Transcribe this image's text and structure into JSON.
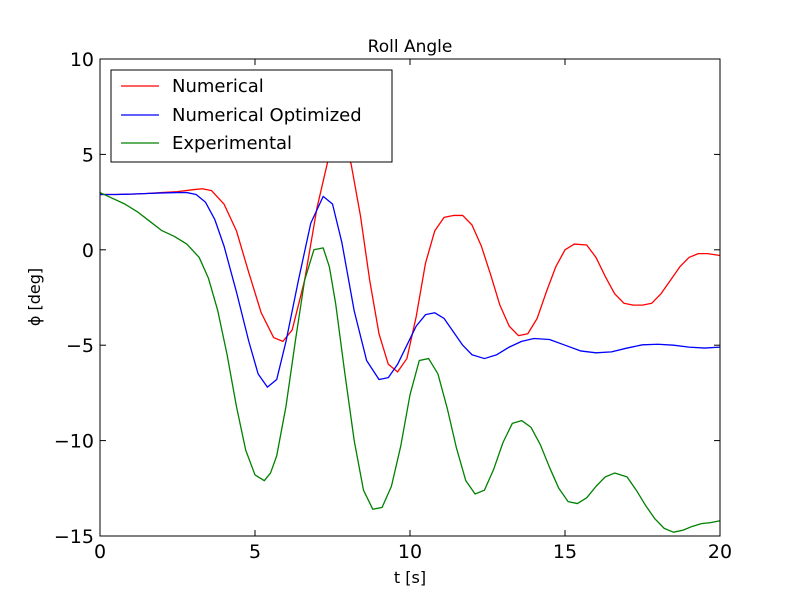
{
  "chart_data": {
    "type": "line",
    "title": "Roll Angle",
    "xlabel": "t [s]",
    "ylabel": "ϕ [deg]",
    "xlim": [
      0,
      20
    ],
    "ylim": [
      -15,
      10
    ],
    "xticks": [
      0,
      5,
      10,
      15,
      20
    ],
    "yticks": [
      10,
      5,
      0,
      -5,
      -10,
      -15
    ],
    "xtick_labels": [
      "0",
      "5",
      "10",
      "15",
      "20"
    ],
    "ytick_labels": [
      "10",
      "5",
      "0",
      "−5",
      "−10",
      "−15"
    ],
    "grid": false,
    "legend_position": "top-left",
    "series": [
      {
        "name": "Numerical",
        "color": "#ff0000",
        "x": [
          0,
          0.5,
          1,
          1.5,
          2,
          2.5,
          3,
          3.3,
          3.6,
          4,
          4.4,
          4.8,
          5.2,
          5.6,
          5.9,
          6.2,
          6.6,
          7,
          7.4,
          7.8,
          8.1,
          8.4,
          8.7,
          9,
          9.3,
          9.6,
          9.9,
          10.2,
          10.5,
          10.8,
          11.1,
          11.4,
          11.7,
          12,
          12.3,
          12.6,
          12.9,
          13.2,
          13.5,
          13.8,
          14.1,
          14.4,
          14.7,
          15,
          15.3,
          15.7,
          16,
          16.3,
          16.6,
          16.9,
          17.2,
          17.5,
          17.8,
          18.1,
          18.4,
          18.7,
          19,
          19.3,
          19.6,
          20
        ],
        "y": [
          2.9,
          2.9,
          2.92,
          2.95,
          3.0,
          3.05,
          3.15,
          3.2,
          3.1,
          2.4,
          1.0,
          -1.2,
          -3.3,
          -4.6,
          -4.8,
          -4.2,
          -1.6,
          2.2,
          5.0,
          5.6,
          4.5,
          1.8,
          -1.6,
          -4.4,
          -6.0,
          -6.4,
          -5.7,
          -3.5,
          -0.7,
          1.0,
          1.7,
          1.8,
          1.8,
          1.3,
          0.2,
          -1.3,
          -2.9,
          -4.0,
          -4.5,
          -4.4,
          -3.6,
          -2.2,
          -0.9,
          0.0,
          0.3,
          0.25,
          -0.4,
          -1.4,
          -2.3,
          -2.8,
          -2.9,
          -2.9,
          -2.8,
          -2.3,
          -1.6,
          -0.9,
          -0.4,
          -0.2,
          -0.2,
          -0.3
        ]
      },
      {
        "name": "Numerical Optimized",
        "color": "#0000ff",
        "x": [
          0,
          0.5,
          1,
          1.5,
          2,
          2.5,
          2.8,
          3.1,
          3.4,
          3.7,
          4,
          4.4,
          4.8,
          5.1,
          5.4,
          5.7,
          6,
          6.4,
          6.8,
          7.2,
          7.5,
          7.8,
          8.2,
          8.6,
          9,
          9.3,
          9.6,
          9.9,
          10.2,
          10.5,
          10.8,
          11.1,
          11.4,
          11.7,
          12,
          12.4,
          12.8,
          13.2,
          13.6,
          14,
          14.5,
          15,
          15.5,
          16,
          16.5,
          17,
          17.5,
          18,
          18.5,
          19,
          19.5,
          20
        ],
        "y": [
          2.9,
          2.9,
          2.92,
          2.95,
          2.98,
          3.0,
          3.0,
          2.9,
          2.5,
          1.6,
          0.2,
          -2.2,
          -4.8,
          -6.5,
          -7.2,
          -6.8,
          -4.8,
          -1.6,
          1.4,
          2.8,
          2.4,
          0.4,
          -3.2,
          -5.8,
          -6.8,
          -6.7,
          -6.0,
          -5.0,
          -4.0,
          -3.4,
          -3.3,
          -3.6,
          -4.3,
          -5.0,
          -5.5,
          -5.7,
          -5.5,
          -5.1,
          -4.8,
          -4.65,
          -4.7,
          -5.0,
          -5.3,
          -5.4,
          -5.35,
          -5.15,
          -4.98,
          -4.95,
          -5.0,
          -5.1,
          -5.15,
          -5.1
        ]
      },
      {
        "name": "Experimental",
        "color": "#008000",
        "x": [
          0,
          0.4,
          0.8,
          1.2,
          1.6,
          2,
          2.4,
          2.8,
          3.2,
          3.5,
          3.8,
          4.1,
          4.4,
          4.7,
          5,
          5.3,
          5.5,
          5.7,
          6,
          6.3,
          6.6,
          6.9,
          7.2,
          7.4,
          7.6,
          7.9,
          8.2,
          8.5,
          8.8,
          9.1,
          9.4,
          9.7,
          10,
          10.3,
          10.6,
          10.9,
          11.2,
          11.5,
          11.8,
          12.1,
          12.4,
          12.7,
          13,
          13.3,
          13.6,
          13.9,
          14.2,
          14.5,
          14.8,
          15.1,
          15.4,
          15.7,
          16,
          16.3,
          16.6,
          17,
          17.3,
          17.6,
          17.9,
          18.2,
          18.5,
          18.8,
          19.1,
          19.4,
          19.7,
          20
        ],
        "y": [
          3.0,
          2.7,
          2.4,
          2.0,
          1.5,
          1.0,
          0.7,
          0.3,
          -0.4,
          -1.5,
          -3.2,
          -5.5,
          -8.2,
          -10.5,
          -11.8,
          -12.1,
          -11.7,
          -10.8,
          -8.2,
          -4.8,
          -1.6,
          0.0,
          0.1,
          -0.9,
          -2.8,
          -6.5,
          -10.0,
          -12.6,
          -13.6,
          -13.5,
          -12.4,
          -10.3,
          -7.6,
          -5.8,
          -5.7,
          -6.5,
          -8.3,
          -10.4,
          -12.1,
          -12.8,
          -12.6,
          -11.5,
          -10.1,
          -9.1,
          -8.95,
          -9.3,
          -10.2,
          -11.4,
          -12.5,
          -13.2,
          -13.3,
          -13.0,
          -12.4,
          -11.9,
          -11.7,
          -11.9,
          -12.6,
          -13.4,
          -14.1,
          -14.6,
          -14.8,
          -14.7,
          -14.5,
          -14.35,
          -14.3,
          -14.2
        ]
      }
    ]
  }
}
